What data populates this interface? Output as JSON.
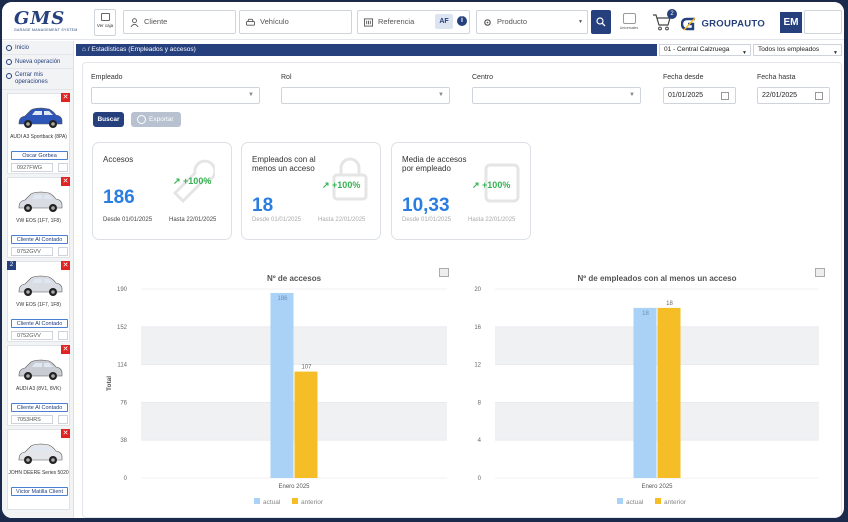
{
  "topbar": {
    "logo_text": "GMS",
    "logo_sub": "GARAGE MANAGEMENT SYSTEM",
    "ver_caja": "Ver caja",
    "cliente_placeholder": "Cliente",
    "vehiculo_placeholder": "Vehículo",
    "referencia_placeholder": "Referencia",
    "af_label": "AF",
    "info_label": "i",
    "producto_placeholder": "Producto",
    "universales_label": "Universales",
    "cart_count": "2",
    "brand": "GROUPAUTO",
    "user_initials": "EM"
  },
  "sidebar": {
    "inicio": "Inicio",
    "nueva_operacion": "Nueva operación",
    "cerrar": "Cerrar mis operaciones",
    "vehicles": [
      {
        "name": "AUDI A3 Sportback (8PA)",
        "client": "Oscar Gorbea",
        "plate": "0927FWG",
        "badge": "",
        "color": "#2d56b8"
      },
      {
        "name": "VW EOS (1F7, 1F8)",
        "client": "Cliente Al Contado",
        "plate": "0752GVV",
        "badge": "",
        "color": "#d9dde3"
      },
      {
        "name": "VW EOS (1F7, 1F8)",
        "client": "Cliente Al Contado",
        "plate": "0752GVV",
        "badge": "2",
        "color": "#d9dde3"
      },
      {
        "name": "AUDI A3 (8V1, 8VK)",
        "client": "Cliente Al Contado",
        "plate": "7053HRS",
        "badge": "",
        "color": "#c9cdd3"
      },
      {
        "name": "JOHN DEERE Series 5020",
        "client": "Victor Matilla Client",
        "plate": "",
        "badge": "",
        "color": "#e4e6ea"
      }
    ]
  },
  "header": {
    "title": "Estadísticas (Empleados y accesos)",
    "centro": "01 - Central Calzruega",
    "empleados": "Todos los empleados"
  },
  "filters": {
    "empleado_label": "Empleado",
    "rol_label": "Rol",
    "centro_label": "Centro",
    "fecha_desde_label": "Fecha desde",
    "fecha_desde": "01/01/2025",
    "fecha_hasta_label": "Fecha hasta",
    "fecha_hasta": "22/01/2025",
    "buscar": "Buscar",
    "exportar": "Exportar"
  },
  "cards": [
    {
      "title": "Accesos",
      "value": "186",
      "pct": "+100%",
      "desde_label": "Desde",
      "desde": "01/01/2025",
      "hasta_label": "Hasta",
      "hasta": "22/01/2025"
    },
    {
      "title": "Empleados con al menos un acceso",
      "value": "18",
      "pct": "+100%",
      "desde_label": "Desde",
      "desde": "01/01/2025",
      "hasta_label": "Hasta",
      "hasta": "22/01/2025"
    },
    {
      "title": "Media de accesos por empleado",
      "value": "10,33",
      "pct": "+100%",
      "desde_label": "Desde",
      "desde": "01/01/2025",
      "hasta_label": "Hasta",
      "hasta": "22/01/2025"
    }
  ],
  "chart_data": [
    {
      "type": "bar",
      "title": "Nº de accesos",
      "categories": [
        "Enero 2025"
      ],
      "series": [
        {
          "name": "actual",
          "values": [
            186
          ],
          "color": "#a9d2f6"
        },
        {
          "name": "anterior",
          "values": [
            107
          ],
          "color": "#f5bd26"
        }
      ],
      "ylabel": "Total",
      "ylim": [
        0,
        190
      ],
      "yticks": [
        0,
        38,
        76,
        114,
        152,
        190
      ],
      "grid": true,
      "legend": "bottom"
    },
    {
      "type": "bar",
      "title": "Nº de empleados con al menos un acceso",
      "categories": [
        "Enero 2025"
      ],
      "series": [
        {
          "name": "actual",
          "values": [
            18
          ],
          "color": "#a9d2f6"
        },
        {
          "name": "anterior",
          "values": [
            18
          ],
          "color": "#f5bd26"
        }
      ],
      "ylabel": "Total",
      "ylim": [
        0,
        20
      ],
      "yticks": [
        0,
        4,
        8,
        12,
        16,
        20
      ],
      "grid": true,
      "legend": "bottom"
    }
  ]
}
